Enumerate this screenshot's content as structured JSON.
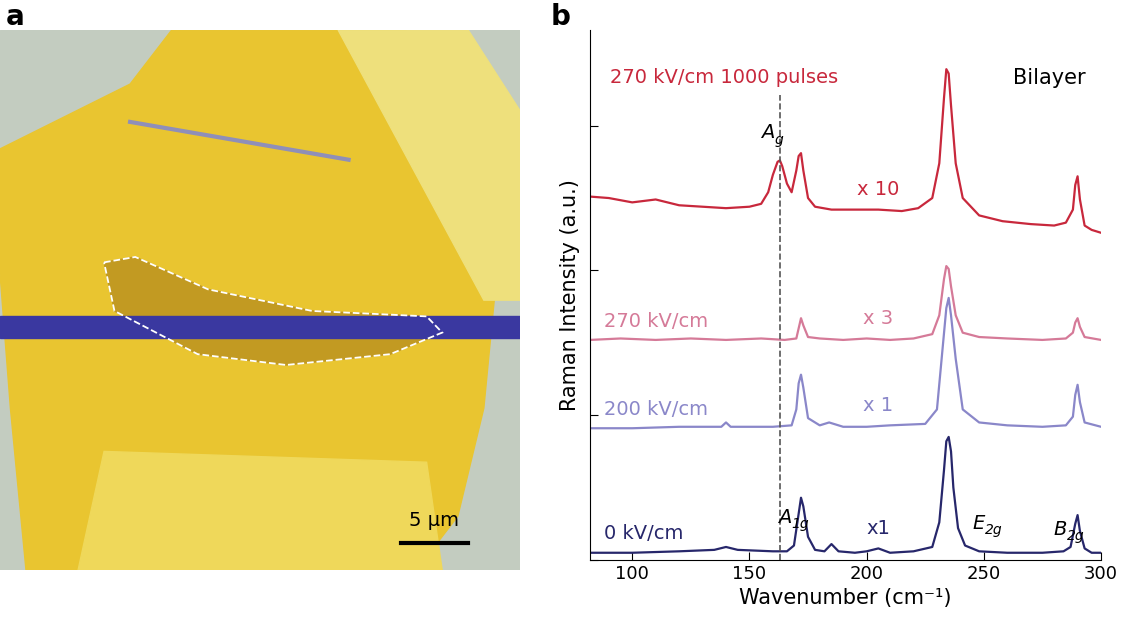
{
  "panel_labels": [
    "a",
    "b"
  ],
  "image": {
    "scale_bar": "5 µm"
  },
  "chart_data": {
    "type": "line",
    "title": "Bilayer",
    "xlabel": "Wavenumber (cm⁻¹)",
    "ylabel": "Raman Intensity (a.u.)",
    "xlim": [
      82,
      300
    ],
    "ylim": [
      0,
      3.66
    ],
    "xticks": [
      100,
      150,
      200,
      250,
      300
    ],
    "yticks": [
      0,
      1,
      2,
      3
    ],
    "tick_labels": "x",
    "reference_line": 163,
    "series": [
      {
        "name": "0 kV/cm",
        "color": "#27276b",
        "scale_label": "x1",
        "x": [
          82,
          100,
          120,
          135,
          140,
          145,
          160,
          166,
          169,
          171,
          172,
          173,
          175,
          178,
          182,
          185,
          188,
          195,
          200,
          205,
          210,
          220,
          228,
          231,
          233,
          234,
          235,
          236,
          237,
          239,
          242,
          248,
          260,
          275,
          284,
          287,
          289,
          290,
          291,
          293,
          296,
          300
        ],
        "values": [
          0.05,
          0.05,
          0.06,
          0.07,
          0.09,
          0.07,
          0.06,
          0.06,
          0.1,
          0.32,
          0.43,
          0.37,
          0.16,
          0.07,
          0.06,
          0.11,
          0.06,
          0.05,
          0.06,
          0.08,
          0.05,
          0.06,
          0.09,
          0.26,
          0.62,
          0.82,
          0.85,
          0.75,
          0.5,
          0.22,
          0.1,
          0.06,
          0.05,
          0.05,
          0.06,
          0.09,
          0.25,
          0.31,
          0.2,
          0.08,
          0.05,
          0.05
        ]
      },
      {
        "name": "200 kV/cm",
        "color": "#8a87c9",
        "scale_label": "x 1",
        "x": [
          82,
          100,
          120,
          138,
          140,
          142,
          160,
          168,
          170,
          171,
          172,
          173,
          175,
          180,
          184,
          190,
          200,
          210,
          225,
          230,
          232,
          234,
          235,
          236,
          238,
          241,
          248,
          260,
          275,
          285,
          288,
          289,
          290,
          291,
          293,
          300
        ],
        "values": [
          0.91,
          0.91,
          0.92,
          0.92,
          0.95,
          0.92,
          0.92,
          0.93,
          1.04,
          1.22,
          1.28,
          1.19,
          0.98,
          0.93,
          0.95,
          0.92,
          0.92,
          0.93,
          0.94,
          1.04,
          1.39,
          1.74,
          1.81,
          1.69,
          1.39,
          1.04,
          0.95,
          0.93,
          0.92,
          0.93,
          0.99,
          1.14,
          1.21,
          1.09,
          0.95,
          0.92
        ]
      },
      {
        "name": "270 kV/cm",
        "color": "#d57a98",
        "scale_label": "x 3",
        "x": [
          82,
          95,
          110,
          125,
          140,
          155,
          165,
          170,
          171,
          172,
          173,
          175,
          180,
          190,
          200,
          210,
          220,
          228,
          231,
          233,
          234,
          235,
          236,
          238,
          241,
          248,
          260,
          275,
          285,
          288,
          289,
          290,
          291,
          293,
          300
        ],
        "values": [
          1.52,
          1.53,
          1.52,
          1.53,
          1.52,
          1.53,
          1.52,
          1.53,
          1.6,
          1.67,
          1.62,
          1.54,
          1.53,
          1.52,
          1.53,
          1.52,
          1.53,
          1.56,
          1.69,
          1.94,
          2.03,
          2.01,
          1.89,
          1.69,
          1.57,
          1.54,
          1.53,
          1.52,
          1.53,
          1.57,
          1.64,
          1.67,
          1.61,
          1.54,
          1.52
        ]
      },
      {
        "name": "270 kV/cm 1000 pulses",
        "color": "#c8283c",
        "scale_label": "x 10",
        "x": [
          82,
          90,
          100,
          110,
          120,
          130,
          140,
          150,
          155,
          158,
          160,
          162,
          163,
          164,
          166,
          168,
          170,
          171,
          172,
          173,
          175,
          178,
          185,
          195,
          205,
          215,
          222,
          228,
          231,
          233,
          234,
          235,
          236,
          238,
          241,
          248,
          258,
          270,
          280,
          285,
          288,
          289,
          290,
          291,
          293,
          296,
          300
        ],
        "values": [
          2.51,
          2.5,
          2.47,
          2.49,
          2.45,
          2.44,
          2.43,
          2.44,
          2.46,
          2.54,
          2.66,
          2.75,
          2.76,
          2.72,
          2.6,
          2.54,
          2.69,
          2.79,
          2.81,
          2.69,
          2.5,
          2.44,
          2.42,
          2.42,
          2.42,
          2.41,
          2.43,
          2.5,
          2.74,
          3.19,
          3.39,
          3.36,
          3.14,
          2.74,
          2.5,
          2.38,
          2.34,
          2.32,
          2.31,
          2.33,
          2.42,
          2.59,
          2.65,
          2.49,
          2.31,
          2.28,
          2.26
        ]
      }
    ],
    "peak_labels": [
      {
        "text": "A",
        "subscript": "g",
        "x": 163,
        "series": 3
      },
      {
        "text": "A",
        "subscript": "1g",
        "x": 172,
        "series": 0
      },
      {
        "text": "E",
        "subscript": "2g",
        "x": 235,
        "series": 0
      },
      {
        "text": "B",
        "subscript": "2g",
        "x": 290,
        "series": 0
      }
    ]
  }
}
